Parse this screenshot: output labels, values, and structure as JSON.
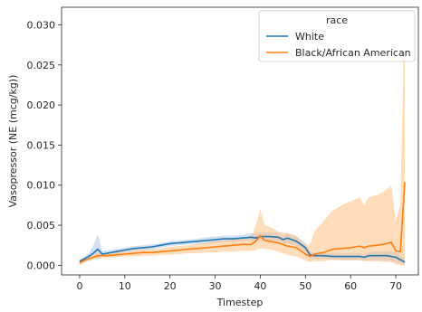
{
  "chart_data": {
    "type": "line",
    "xlabel": "Timestep",
    "ylabel": "Vasopressor (NE (mcg/kg))",
    "xlim": [
      -4,
      75
    ],
    "ylim": [
      -0.0012,
      0.0322
    ],
    "xticks": [
      0,
      10,
      20,
      30,
      40,
      50,
      60,
      70
    ],
    "yticks": [
      0.0,
      0.005,
      0.01,
      0.015,
      0.02,
      0.025,
      0.03
    ],
    "ytick_labels": [
      "0.000",
      "0.005",
      "0.010",
      "0.015",
      "0.020",
      "0.025",
      "0.030"
    ],
    "grid": false,
    "legend": {
      "title": "race",
      "placement": "top-right"
    },
    "series": [
      {
        "name": "White",
        "color": "#1f77b4",
        "band_color": "#aec7e8",
        "points": [
          [
            0,
            0.0005
          ],
          [
            1,
            0.0008
          ],
          [
            2,
            0.0011
          ],
          [
            3,
            0.0015
          ],
          [
            4,
            0.002
          ],
          [
            5,
            0.0014
          ],
          [
            6,
            0.0015
          ],
          [
            8,
            0.0017
          ],
          [
            10,
            0.0019
          ],
          [
            12,
            0.0021
          ],
          [
            14,
            0.0022
          ],
          [
            16,
            0.0023
          ],
          [
            18,
            0.0025
          ],
          [
            20,
            0.0027
          ],
          [
            22,
            0.0028
          ],
          [
            24,
            0.0029
          ],
          [
            26,
            0.003
          ],
          [
            28,
            0.0031
          ],
          [
            30,
            0.0032
          ],
          [
            32,
            0.0033
          ],
          [
            34,
            0.0033
          ],
          [
            36,
            0.0034
          ],
          [
            38,
            0.0035
          ],
          [
            39,
            0.0034
          ],
          [
            40,
            0.0036
          ],
          [
            42,
            0.0036
          ],
          [
            44,
            0.0035
          ],
          [
            45,
            0.0032
          ],
          [
            46,
            0.0034
          ],
          [
            48,
            0.003
          ],
          [
            50,
            0.0022
          ],
          [
            51,
            0.0013
          ],
          [
            52,
            0.0012
          ],
          [
            54,
            0.0012
          ],
          [
            56,
            0.0011
          ],
          [
            58,
            0.0011
          ],
          [
            60,
            0.0011
          ],
          [
            62,
            0.0011
          ],
          [
            63,
            0.001
          ],
          [
            64,
            0.0012
          ],
          [
            66,
            0.0012
          ],
          [
            68,
            0.0012
          ],
          [
            70,
            0.001
          ],
          [
            72,
            0.0004
          ]
        ],
        "lower": [
          [
            0,
            0.0003
          ],
          [
            1,
            0.0005
          ],
          [
            2,
            0.0008
          ],
          [
            3,
            0.001
          ],
          [
            4,
            0.0008
          ],
          [
            5,
            0.0011
          ],
          [
            6,
            0.0012
          ],
          [
            8,
            0.0014
          ],
          [
            10,
            0.0016
          ],
          [
            12,
            0.0018
          ],
          [
            14,
            0.0019
          ],
          [
            16,
            0.002
          ],
          [
            18,
            0.0022
          ],
          [
            20,
            0.0024
          ],
          [
            22,
            0.0025
          ],
          [
            24,
            0.0026
          ],
          [
            26,
            0.0027
          ],
          [
            28,
            0.0027
          ],
          [
            30,
            0.0028
          ],
          [
            32,
            0.0029
          ],
          [
            34,
            0.0029
          ],
          [
            36,
            0.003
          ],
          [
            38,
            0.0031
          ],
          [
            39,
            0.003
          ],
          [
            40,
            0.0031
          ],
          [
            42,
            0.0031
          ],
          [
            44,
            0.003
          ],
          [
            45,
            0.0027
          ],
          [
            46,
            0.0028
          ],
          [
            48,
            0.0024
          ],
          [
            50,
            0.0016
          ],
          [
            51,
            0.0009
          ],
          [
            52,
            0.0008
          ],
          [
            54,
            0.0008
          ],
          [
            56,
            0.0007
          ],
          [
            58,
            0.0007
          ],
          [
            60,
            0.0007
          ],
          [
            62,
            0.0007
          ],
          [
            63,
            0.0006
          ],
          [
            64,
            0.0007
          ],
          [
            66,
            0.0007
          ],
          [
            68,
            0.0006
          ],
          [
            70,
            0.0004
          ],
          [
            72,
            0.0
          ]
        ],
        "upper": [
          [
            0,
            0.0007
          ],
          [
            1,
            0.0011
          ],
          [
            2,
            0.0015
          ],
          [
            3,
            0.0024
          ],
          [
            4,
            0.0039
          ],
          [
            5,
            0.0018
          ],
          [
            6,
            0.0018
          ],
          [
            8,
            0.002
          ],
          [
            10,
            0.0022
          ],
          [
            12,
            0.0024
          ],
          [
            14,
            0.0025
          ],
          [
            16,
            0.0026
          ],
          [
            18,
            0.0028
          ],
          [
            20,
            0.003
          ],
          [
            22,
            0.0031
          ],
          [
            24,
            0.0032
          ],
          [
            26,
            0.0033
          ],
          [
            28,
            0.0035
          ],
          [
            30,
            0.0036
          ],
          [
            32,
            0.0037
          ],
          [
            34,
            0.0037
          ],
          [
            36,
            0.0038
          ],
          [
            38,
            0.004
          ],
          [
            39,
            0.0039
          ],
          [
            40,
            0.0041
          ],
          [
            42,
            0.0041
          ],
          [
            44,
            0.004
          ],
          [
            45,
            0.0037
          ],
          [
            46,
            0.004
          ],
          [
            48,
            0.0036
          ],
          [
            50,
            0.0028
          ],
          [
            51,
            0.0017
          ],
          [
            52,
            0.0016
          ],
          [
            54,
            0.0016
          ],
          [
            56,
            0.0015
          ],
          [
            58,
            0.0015
          ],
          [
            60,
            0.0015
          ],
          [
            62,
            0.0015
          ],
          [
            63,
            0.0014
          ],
          [
            64,
            0.0017
          ],
          [
            66,
            0.0017
          ],
          [
            68,
            0.0018
          ],
          [
            70,
            0.0016
          ],
          [
            72,
            0.0009
          ]
        ]
      },
      {
        "name": "Black/African American",
        "color": "#ff7f0e",
        "band_color": "#ffbb78",
        "points": [
          [
            0,
            0.0003
          ],
          [
            1,
            0.0006
          ],
          [
            2,
            0.0008
          ],
          [
            3,
            0.001
          ],
          [
            4,
            0.0012
          ],
          [
            5,
            0.0012
          ],
          [
            6,
            0.0012
          ],
          [
            8,
            0.0013
          ],
          [
            10,
            0.0014
          ],
          [
            12,
            0.0015
          ],
          [
            14,
            0.0016
          ],
          [
            16,
            0.0016
          ],
          [
            18,
            0.0017
          ],
          [
            20,
            0.0018
          ],
          [
            22,
            0.0019
          ],
          [
            24,
            0.002
          ],
          [
            26,
            0.0021
          ],
          [
            28,
            0.0022
          ],
          [
            30,
            0.0023
          ],
          [
            32,
            0.0024
          ],
          [
            34,
            0.0025
          ],
          [
            36,
            0.0026
          ],
          [
            38,
            0.0026
          ],
          [
            39,
            0.003
          ],
          [
            40,
            0.0037
          ],
          [
            41,
            0.0031
          ],
          [
            42,
            0.003
          ],
          [
            44,
            0.0028
          ],
          [
            46,
            0.0024
          ],
          [
            48,
            0.0022
          ],
          [
            50,
            0.0014
          ],
          [
            51,
            0.0011
          ],
          [
            52,
            0.0014
          ],
          [
            54,
            0.0016
          ],
          [
            56,
            0.002
          ],
          [
            58,
            0.0021
          ],
          [
            60,
            0.0022
          ],
          [
            62,
            0.0024
          ],
          [
            63,
            0.0022
          ],
          [
            64,
            0.0024
          ],
          [
            66,
            0.0025
          ],
          [
            68,
            0.0027
          ],
          [
            69,
            0.0029
          ],
          [
            70,
            0.0018
          ],
          [
            71,
            0.0017
          ],
          [
            72,
            0.0104
          ]
        ],
        "lower": [
          [
            0,
            0.0
          ],
          [
            1,
            0.0003
          ],
          [
            2,
            0.0005
          ],
          [
            3,
            0.0007
          ],
          [
            4,
            0.0008
          ],
          [
            5,
            0.0009
          ],
          [
            6,
            0.0009
          ],
          [
            8,
            0.001
          ],
          [
            10,
            0.0011
          ],
          [
            12,
            0.0011
          ],
          [
            14,
            0.0012
          ],
          [
            16,
            0.0012
          ],
          [
            18,
            0.0013
          ],
          [
            20,
            0.0013
          ],
          [
            22,
            0.0014
          ],
          [
            24,
            0.0015
          ],
          [
            26,
            0.0015
          ],
          [
            28,
            0.0016
          ],
          [
            30,
            0.0016
          ],
          [
            32,
            0.0017
          ],
          [
            34,
            0.0017
          ],
          [
            36,
            0.0018
          ],
          [
            38,
            0.0018
          ],
          [
            39,
            0.0019
          ],
          [
            40,
            0.0021
          ],
          [
            41,
            0.002
          ],
          [
            42,
            0.002
          ],
          [
            44,
            0.0017
          ],
          [
            46,
            0.0013
          ],
          [
            48,
            0.0011
          ],
          [
            50,
            0.0006
          ],
          [
            51,
            0.0004
          ],
          [
            52,
            0.0005
          ],
          [
            54,
            0.0005
          ],
          [
            56,
            0.0007
          ],
          [
            58,
            0.0006
          ],
          [
            60,
            0.0006
          ],
          [
            62,
            0.0006
          ],
          [
            63,
            0.0005
          ],
          [
            64,
            0.0005
          ],
          [
            66,
            0.0005
          ],
          [
            68,
            0.0004
          ],
          [
            69,
            0.0004
          ],
          [
            70,
            0.0001
          ],
          [
            71,
            0.0
          ],
          [
            72,
            0.0
          ]
        ],
        "upper": [
          [
            0,
            0.0006
          ],
          [
            1,
            0.0009
          ],
          [
            2,
            0.0011
          ],
          [
            3,
            0.0013
          ],
          [
            4,
            0.0016
          ],
          [
            5,
            0.0015
          ],
          [
            6,
            0.0015
          ],
          [
            8,
            0.0016
          ],
          [
            10,
            0.0017
          ],
          [
            12,
            0.0019
          ],
          [
            14,
            0.002
          ],
          [
            16,
            0.002
          ],
          [
            18,
            0.0021
          ],
          [
            20,
            0.0023
          ],
          [
            22,
            0.0024
          ],
          [
            24,
            0.0025
          ],
          [
            26,
            0.0027
          ],
          [
            28,
            0.0028
          ],
          [
            30,
            0.003
          ],
          [
            32,
            0.0031
          ],
          [
            34,
            0.0033
          ],
          [
            36,
            0.0034
          ],
          [
            38,
            0.0036
          ],
          [
            39,
            0.005
          ],
          [
            40,
            0.007
          ],
          [
            41,
            0.005
          ],
          [
            42,
            0.0048
          ],
          [
            44,
            0.0042
          ],
          [
            46,
            0.004
          ],
          [
            48,
            0.0037
          ],
          [
            50,
            0.0025
          ],
          [
            51,
            0.0026
          ],
          [
            52,
            0.0042
          ],
          [
            54,
            0.0055
          ],
          [
            56,
            0.0068
          ],
          [
            58,
            0.0075
          ],
          [
            60,
            0.008
          ],
          [
            62,
            0.0085
          ],
          [
            63,
            0.0075
          ],
          [
            64,
            0.0085
          ],
          [
            66,
            0.0088
          ],
          [
            68,
            0.0095
          ],
          [
            69,
            0.01
          ],
          [
            70,
            0.0055
          ],
          [
            71,
            0.0075
          ],
          [
            72,
            0.032
          ]
        ]
      }
    ]
  }
}
